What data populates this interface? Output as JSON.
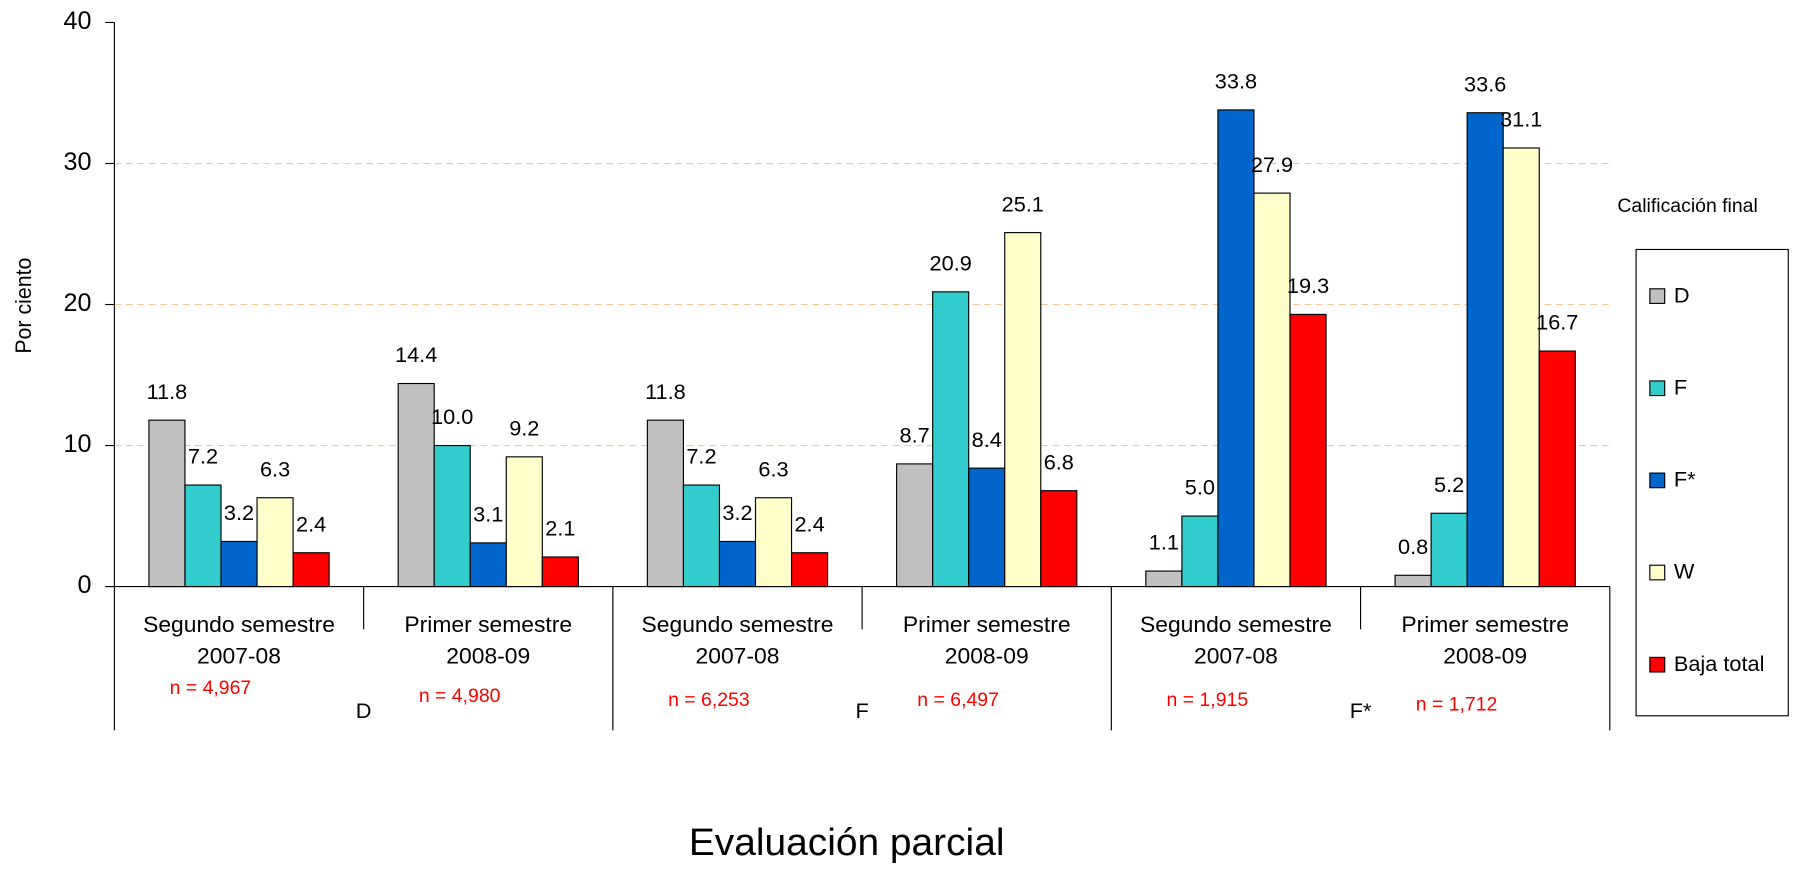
{
  "chart_data": {
    "type": "bar",
    "y_label": "Por ciento",
    "x_label": "Evaluación parcial",
    "legend_title": "Calificación final",
    "legend": "right",
    "grid": true,
    "ylim": [
      0,
      40
    ],
    "yticks": [
      0,
      10,
      20,
      30,
      40
    ],
    "categories": [
      [
        "Segundo semestre",
        "2007-08"
      ],
      [
        "Primer semestre",
        "2008-09"
      ],
      [
        "Segundo semestre",
        "2007-08"
      ],
      [
        "Primer semestre",
        "2008-09"
      ],
      [
        "Segundo semestre",
        "2007-08"
      ],
      [
        "Primer semestre",
        "2008-09"
      ]
    ],
    "groups": [
      "D",
      "F",
      "F*"
    ],
    "annotations": [
      "n = 4,967",
      "n = 4,980",
      "n = 6,253",
      "n = 6,497",
      "n = 1,915",
      "n = 1,712"
    ],
    "series": [
      {
        "name": "D",
        "color": "#c0c0c0",
        "values": [
          11.8,
          14.4,
          11.8,
          8.7,
          1.1,
          0.8
        ],
        "value_labels": [
          "11.8",
          "14.4",
          "11.8",
          "8.7",
          "1.1",
          "0.8"
        ]
      },
      {
        "name": "F",
        "color": "#33cccc",
        "values": [
          7.2,
          10.0,
          7.2,
          20.9,
          5.0,
          5.2
        ],
        "value_labels": [
          "7.2",
          "10.0",
          "7.2",
          "20.9",
          "5.0",
          "5.2"
        ]
      },
      {
        "name": "F*",
        "color": "#0066cc",
        "values": [
          3.2,
          3.1,
          3.2,
          8.4,
          33.8,
          33.6
        ],
        "value_labels": [
          "3.2",
          "3.1",
          "3.2",
          "8.4",
          "33.8",
          "33.6"
        ]
      },
      {
        "name": "W",
        "color": "#ffffcc",
        "values": [
          6.3,
          9.2,
          6.3,
          25.1,
          27.9,
          31.1
        ],
        "value_labels": [
          "6.3",
          "9.2",
          "6.3",
          "25.1",
          "27.9",
          "31.1"
        ]
      },
      {
        "name": "Baja total",
        "color": "#ff0000",
        "values": [
          2.4,
          2.1,
          2.4,
          6.8,
          19.3,
          16.7
        ],
        "value_labels": [
          "2.4",
          "2.1",
          "2.4",
          "6.8",
          "19.3",
          "16.7"
        ]
      }
    ]
  }
}
